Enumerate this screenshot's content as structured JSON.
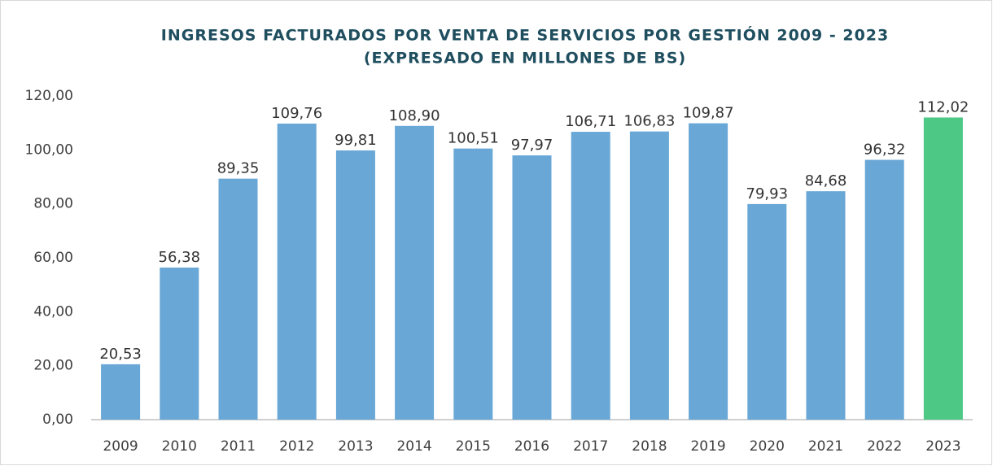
{
  "chart_data": {
    "type": "bar",
    "title": "INGRESOS FACTURADOS POR VENTA DE SERVICIOS POR GESTIÓN  2009 - 2023",
    "subtitle": "(EXPRESADO EN MILLONES DE BS)",
    "categories": [
      "2009",
      "2010",
      "2011",
      "2012",
      "2013",
      "2014",
      "2015",
      "2016",
      "2017",
      "2018",
      "2019",
      "2020",
      "2021",
      "2022",
      "2023"
    ],
    "values": [
      20.53,
      56.38,
      89.35,
      109.76,
      99.81,
      108.9,
      100.51,
      97.97,
      106.71,
      106.83,
      109.87,
      79.93,
      84.68,
      96.32,
      112.02
    ],
    "value_labels": [
      "20,53",
      "56,38",
      "89,35",
      "109,76",
      "99,81",
      "108,90",
      "100,51",
      "97,97",
      "106,71",
      "106,83",
      "109,87",
      "79,93",
      "84,68",
      "96,32",
      "112,02"
    ],
    "colors": [
      "#68a7d6",
      "#68a7d6",
      "#68a7d6",
      "#68a7d6",
      "#68a7d6",
      "#68a7d6",
      "#68a7d6",
      "#68a7d6",
      "#68a7d6",
      "#68a7d6",
      "#68a7d6",
      "#68a7d6",
      "#68a7d6",
      "#68a7d6",
      "#4dc885"
    ],
    "ylim": [
      0,
      120
    ],
    "yticks": [
      {
        "value": 0,
        "label": "0,00"
      },
      {
        "value": 20,
        "label": "20,00"
      },
      {
        "value": 40,
        "label": "40,00"
      },
      {
        "value": 60,
        "label": "60,00"
      },
      {
        "value": 80,
        "label": "80,00"
      },
      {
        "value": 100,
        "label": "100,00"
      },
      {
        "value": 120,
        "label": "120,00"
      }
    ],
    "grid": false
  }
}
